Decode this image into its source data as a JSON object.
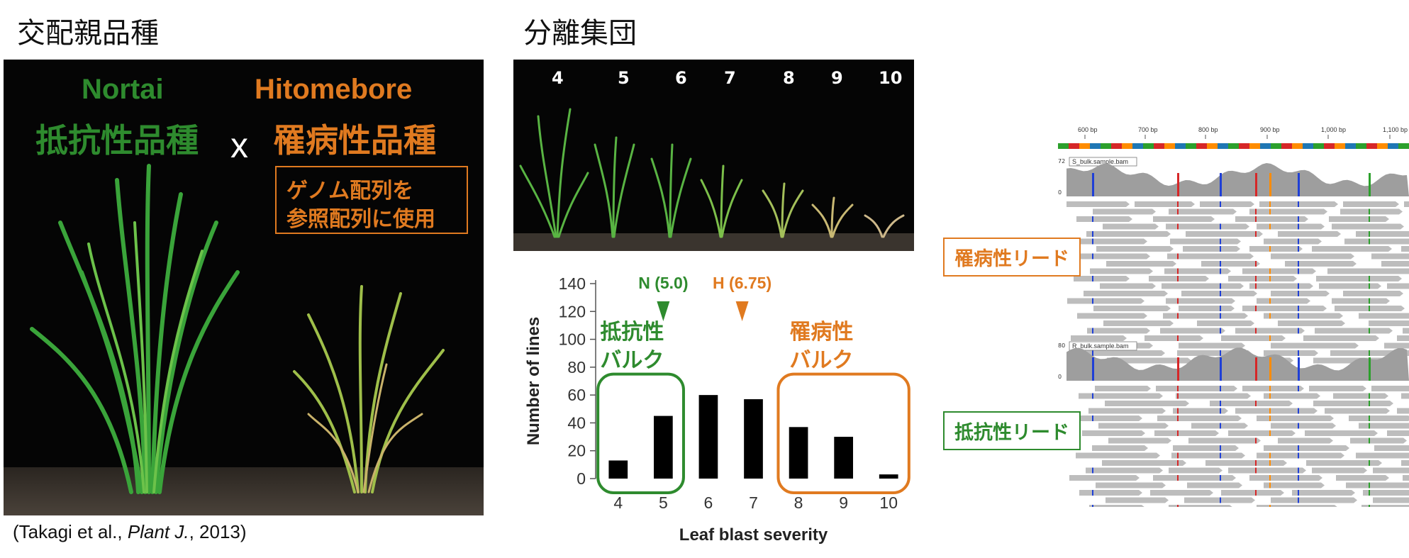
{
  "left": {
    "heading": "交配親品種",
    "resistant_name": "Nortai",
    "resistant_label": "抵抗性品種",
    "cross_symbol": "x",
    "susceptible_name": "Hitomebore",
    "susceptible_label": "罹病性品種",
    "note_line1": "ゲノム配列を",
    "note_line2": "参照配列に使用",
    "citation_prefix": "(Takagi et al., ",
    "citation_journal": "Plant J.",
    "citation_suffix": ", 2013)"
  },
  "middle": {
    "heading": "分離集団",
    "photo_numbers": [
      "4",
      "5",
      "6",
      "7",
      "8",
      "9",
      "10"
    ],
    "marker_n": "N (5.0)",
    "marker_h": "H (6.75)",
    "resistant_bulk_line1": "抵抗性",
    "resistant_bulk_line2": "バルク",
    "susceptible_bulk_line1": "罹病性",
    "susceptible_bulk_line2": "バルク"
  },
  "chart_data": {
    "type": "bar",
    "categories": [
      "4",
      "5",
      "6",
      "7",
      "8",
      "9",
      "10"
    ],
    "values": [
      13,
      45,
      60,
      57,
      37,
      30,
      3
    ],
    "xlabel": "Leaf blast severity",
    "ylabel": "Number of lines",
    "ylim": [
      0,
      140
    ],
    "yticks": [
      "0",
      "20",
      "40",
      "60",
      "80",
      "100",
      "120",
      "140"
    ],
    "annotations": [
      {
        "text": "N (5.0)",
        "x": 5.0,
        "color": "#2e8b2e"
      },
      {
        "text": "H (6.75)",
        "x": 6.75,
        "color": "#e07a20"
      }
    ],
    "groups": [
      {
        "label": "抵抗性バルク",
        "categories": [
          "4",
          "5"
        ],
        "color": "#2e8b2e"
      },
      {
        "label": "罹病性バルク",
        "categories": [
          "8",
          "9",
          "10"
        ],
        "color": "#e07a20"
      }
    ]
  },
  "right": {
    "ruler": [
      "600 bp",
      "700 bp",
      "800 bp",
      "900 bp",
      "1,000 bp",
      "1,100 bp"
    ],
    "track1_name": "S_bulk.sample.bam",
    "track1_max": "72",
    "track1_min": "0",
    "track2_name": "R_bulk.sample.bam",
    "track2_max": "80",
    "track2_min": "0",
    "label_susceptible": "罹病性リード",
    "label_resistant": "抵抗性リード"
  },
  "colors": {
    "green": "#2e8b2e",
    "orange": "#e07a20",
    "read_gray": "#bdbdbd",
    "coverage_gray": "#9e9e9e"
  }
}
